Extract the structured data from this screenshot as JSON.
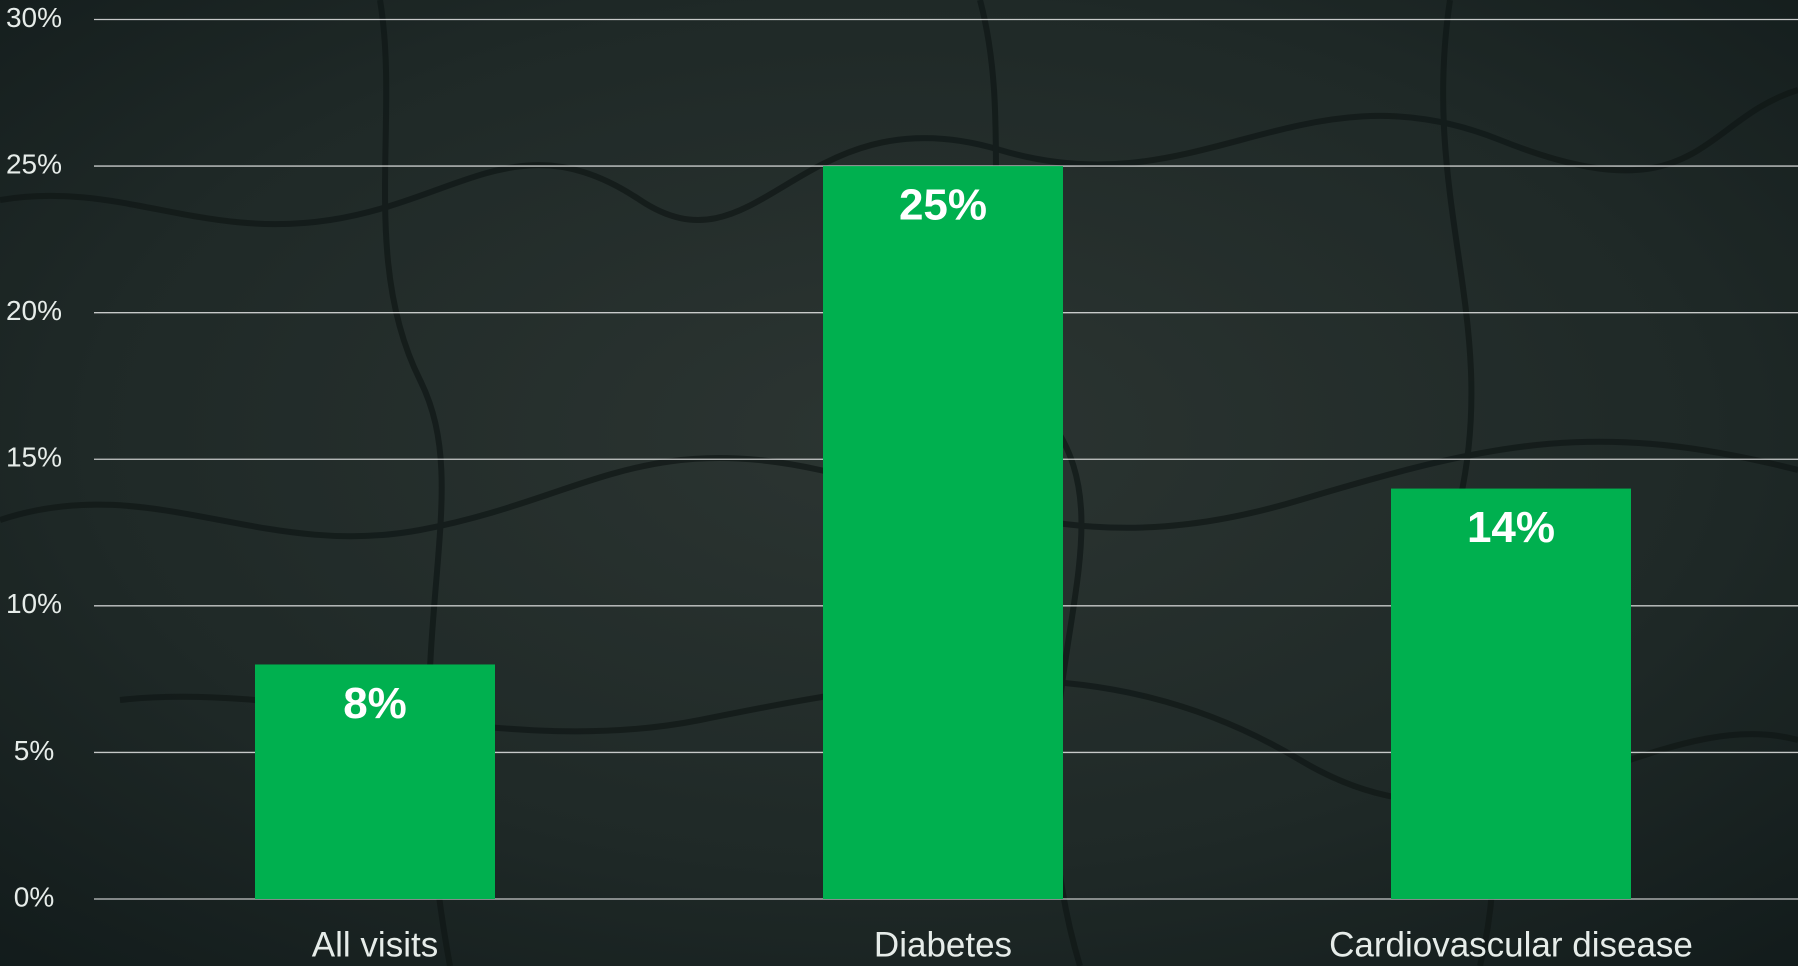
{
  "chart_data": {
    "type": "bar",
    "categories": [
      "All visits",
      "Diabetes",
      "Cardiovascular disease"
    ],
    "values": [
      8,
      25,
      14
    ],
    "value_labels": [
      "8%",
      "25%",
      "14%"
    ],
    "color": "#00b04f",
    "ylim": [
      0,
      30
    ],
    "yticks": [
      {
        "value": 0,
        "label": "0%"
      },
      {
        "value": 5,
        "label": "5%"
      },
      {
        "value": 10,
        "label": "10%"
      },
      {
        "value": 15,
        "label": "15%"
      },
      {
        "value": 20,
        "label": "20%"
      },
      {
        "value": 25,
        "label": "25%"
      },
      {
        "value": 30,
        "label": "30%"
      }
    ],
    "grid": true
  }
}
